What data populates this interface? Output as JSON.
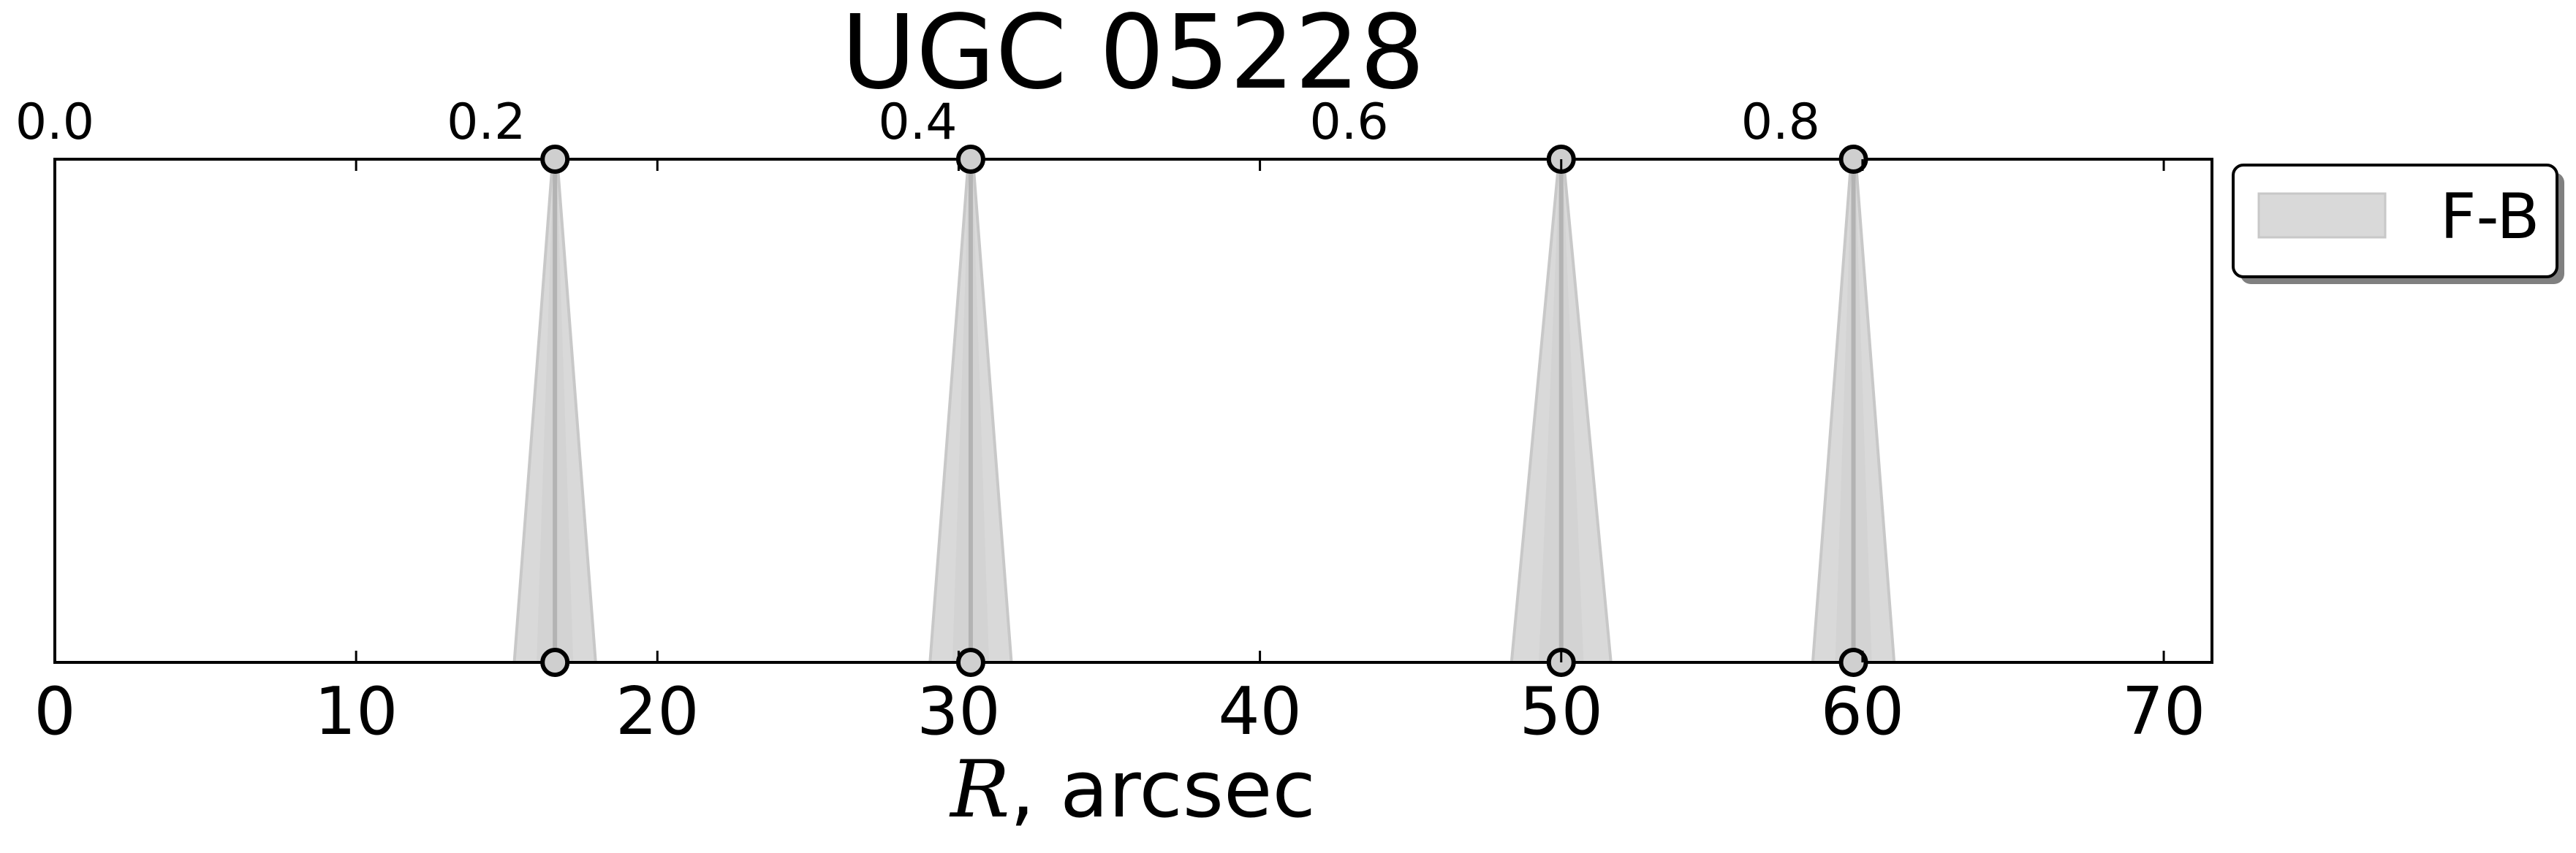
{
  "chart_data": {
    "type": "area",
    "title": "UGC 05228",
    "xlabel_var": "R",
    "xlabel_unit": ", arcsec",
    "xlim": [
      0,
      71.6
    ],
    "x_ticks": [
      0,
      10,
      20,
      30,
      40,
      50,
      60,
      70
    ],
    "x_tick_labels": [
      "0",
      "10",
      "20",
      "30",
      "40",
      "50",
      "60",
      "70"
    ],
    "top_axis": {
      "lim": [
        0.0,
        1.0
      ],
      "ticks": [
        0.0,
        0.2,
        0.4,
        0.6,
        0.8
      ],
      "tick_labels": [
        "0.0",
        "0.2",
        "0.4",
        "0.6",
        "0.8"
      ]
    },
    "ylim": [
      0,
      1
    ],
    "y_ticks_shown": false,
    "grid": false,
    "legend": {
      "placement": "outside-right-top",
      "entries": [
        "F-B"
      ]
    },
    "colors": {
      "band_fill": "#d9d9d9",
      "band_edge": "#c8c8c8",
      "center_line": "#b3b3b3",
      "marker_face": "#cfcfcf",
      "marker_edge": "#000000",
      "legend_patch": "#d9d9d9",
      "legend_shadow": "#808080"
    },
    "series": [
      {
        "name": "F-B",
        "spikes": [
          {
            "x": 16.6,
            "width_bottom": 2.7
          },
          {
            "x": 30.4,
            "width_bottom": 2.7
          },
          {
            "x": 50.0,
            "width_bottom": 3.3
          },
          {
            "x": 59.7,
            "width_bottom": 2.7
          }
        ]
      }
    ]
  }
}
